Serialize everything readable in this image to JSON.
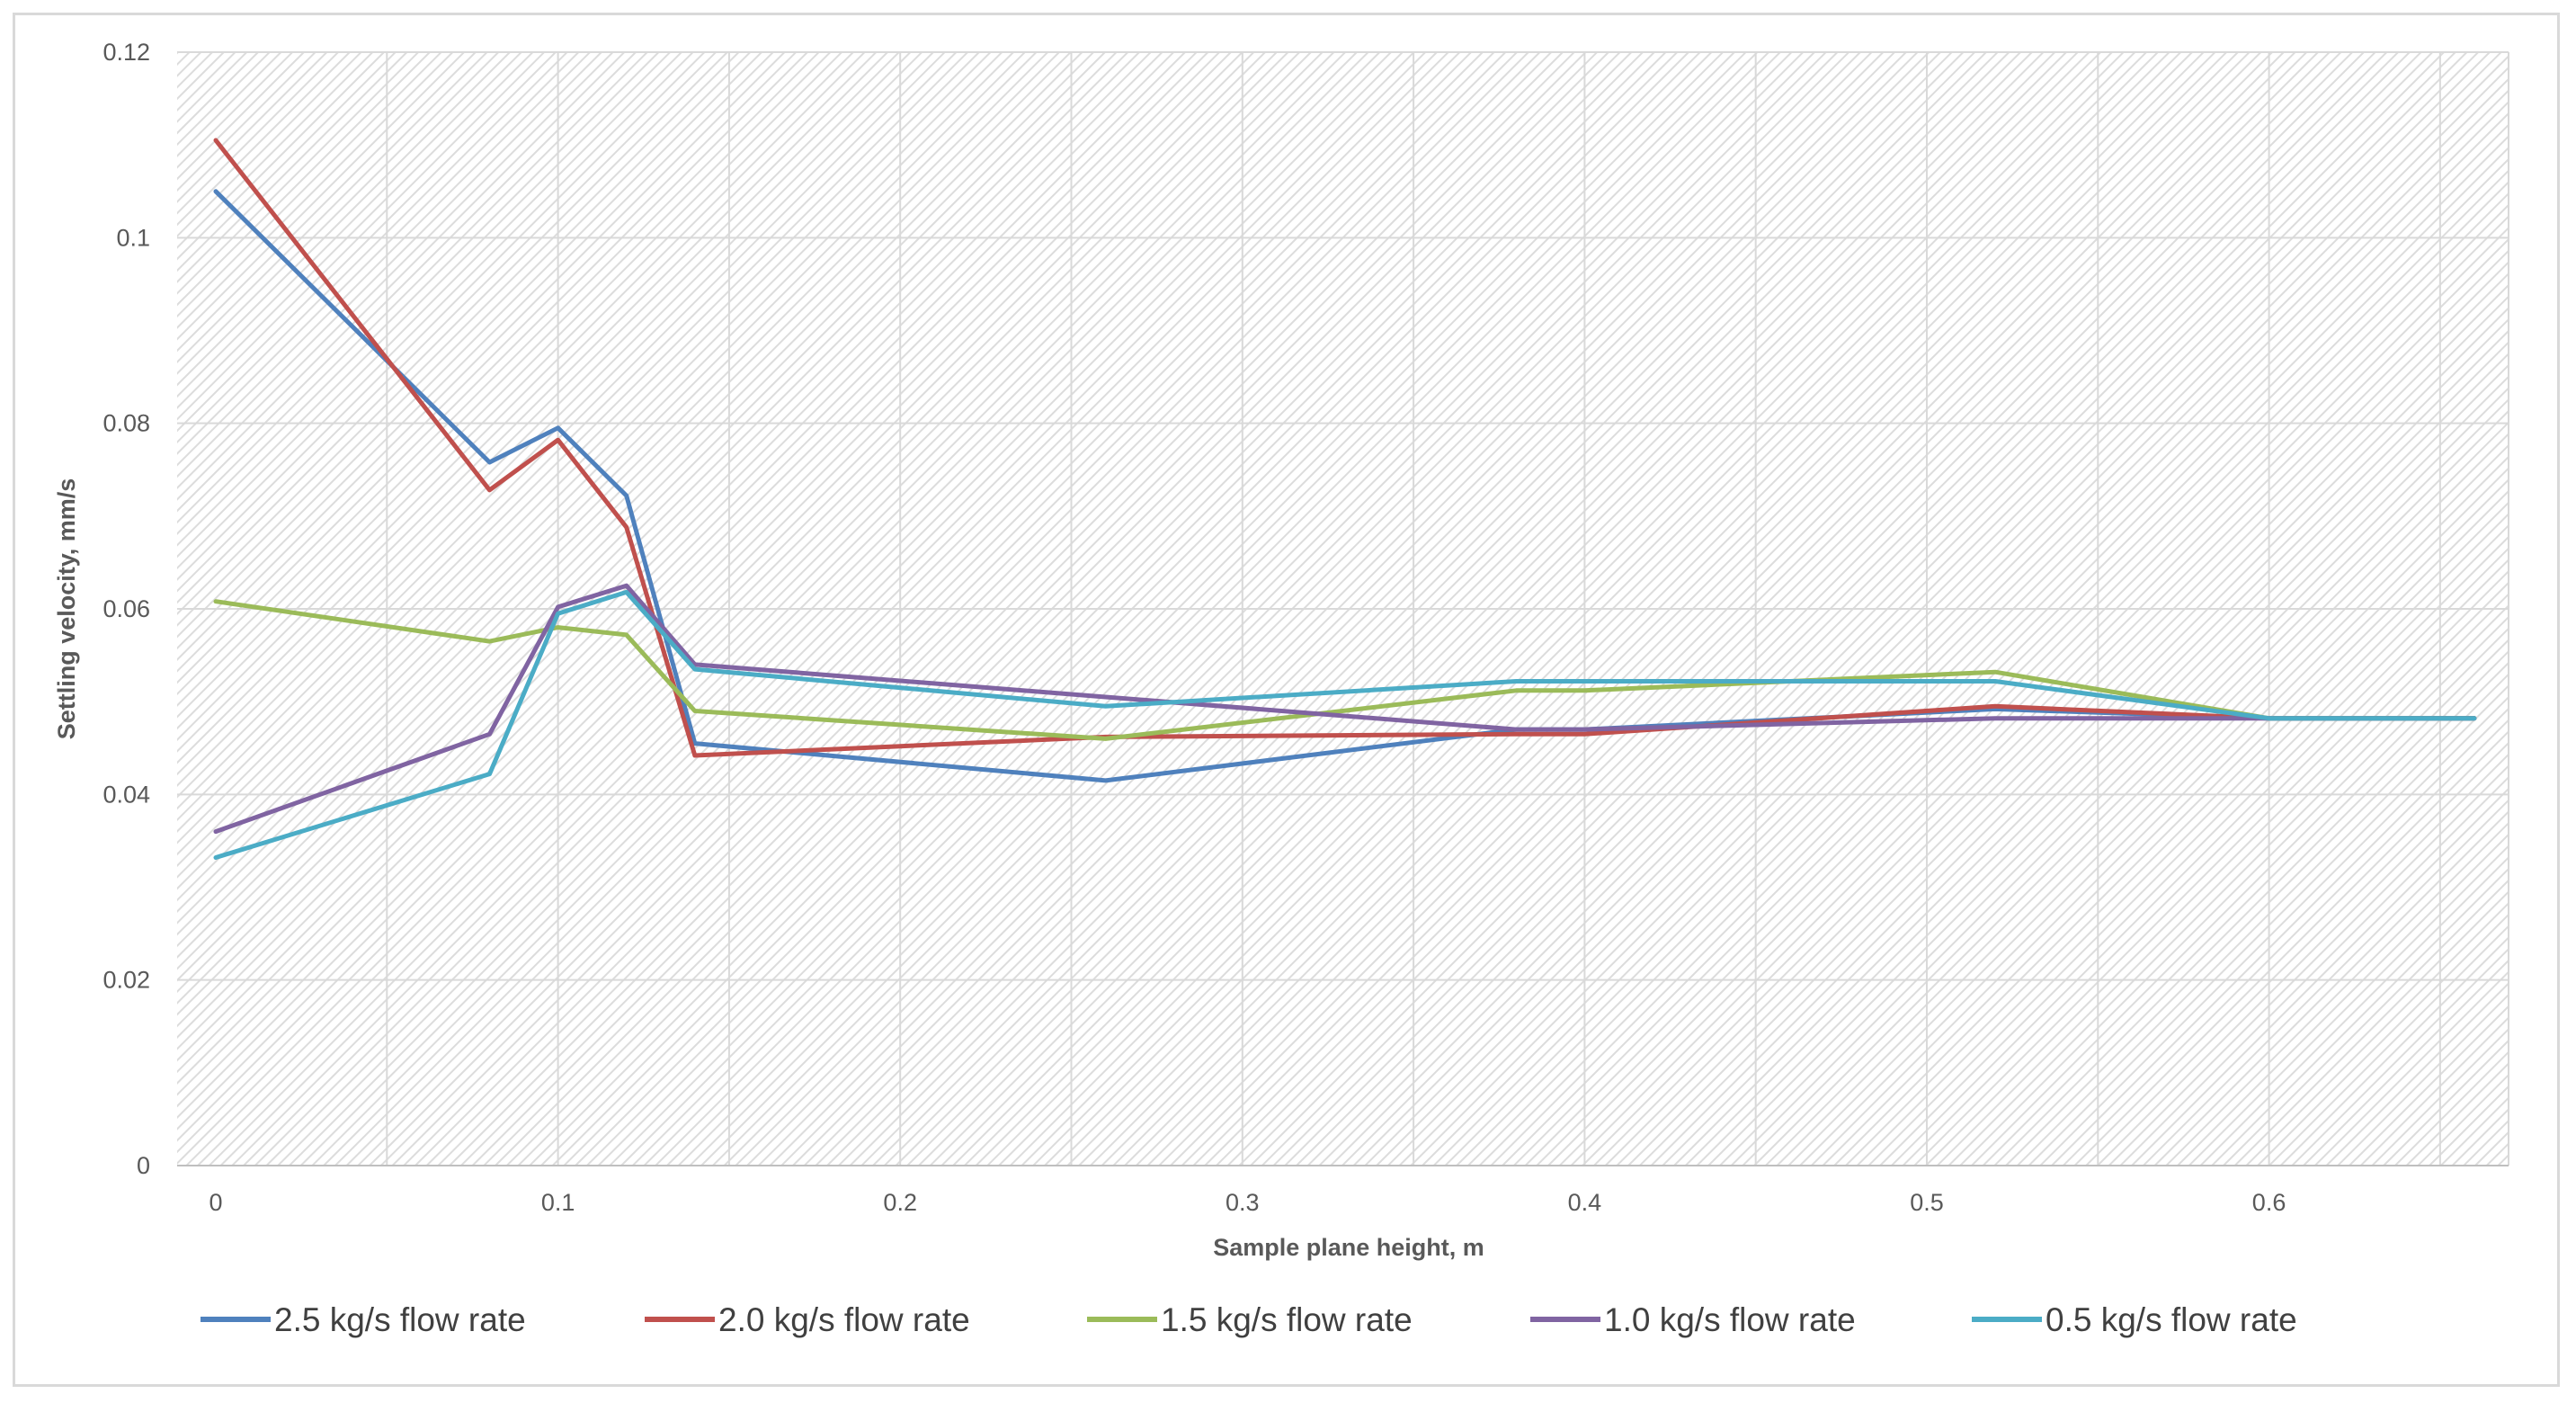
{
  "chart_data": {
    "type": "line",
    "title": "",
    "xlabel": "Sample plane height, m",
    "ylabel": "Settling velocity, mm/s",
    "xlim": [
      -0.0113,
      0.67
    ],
    "ylim": [
      0,
      0.12
    ],
    "xticks": [
      0,
      0.1,
      0.2,
      0.3,
      0.4,
      0.5,
      0.6
    ],
    "xtick_labels": [
      "0",
      "0.1",
      "0.2",
      "0.3",
      "0.4",
      "0.5",
      "0.6"
    ],
    "yticks": [
      0,
      0.02,
      0.04,
      0.06,
      0.08,
      0.1,
      0.12
    ],
    "ytick_labels": [
      "0",
      "0.02",
      "0.04",
      "0.06",
      "0.08",
      "0.1",
      "0.12"
    ],
    "grid": true,
    "legend_position": "bottom",
    "series": [
      {
        "name": "2.5 kg/s flow rate",
        "color": "#4f81bd",
        "x": [
          0,
          0.08,
          0.1,
          0.12,
          0.14,
          0.26,
          0.38,
          0.4,
          0.52,
          0.6,
          0.66
        ],
        "y": [
          0.105,
          0.0758,
          0.0795,
          0.0722,
          0.0455,
          0.0415,
          0.047,
          0.047,
          0.0492,
          0.0482,
          0.0482
        ]
      },
      {
        "name": "2.0 kg/s flow rate",
        "color": "#c0504d",
        "x": [
          0,
          0.08,
          0.1,
          0.12,
          0.14,
          0.2,
          0.26,
          0.38,
          0.4,
          0.52,
          0.6,
          0.66
        ],
        "y": [
          0.1105,
          0.0728,
          0.0782,
          0.0688,
          0.0442,
          0.0452,
          0.0462,
          0.0465,
          0.0465,
          0.0495,
          0.0482,
          0.0482
        ]
      },
      {
        "name": "1.5 kg/s flow rate",
        "color": "#9bbb59",
        "x": [
          0,
          0.08,
          0.1,
          0.12,
          0.14,
          0.26,
          0.38,
          0.4,
          0.52,
          0.6,
          0.66
        ],
        "y": [
          0.0608,
          0.0565,
          0.058,
          0.0572,
          0.049,
          0.046,
          0.0512,
          0.0512,
          0.0532,
          0.0482,
          0.0482
        ]
      },
      {
        "name": "1.0 kg/s flow rate",
        "color": "#8064a2",
        "x": [
          0,
          0.08,
          0.1,
          0.12,
          0.14,
          0.26,
          0.38,
          0.4,
          0.52,
          0.6,
          0.66
        ],
        "y": [
          0.036,
          0.0465,
          0.0602,
          0.0625,
          0.054,
          0.0505,
          0.047,
          0.047,
          0.0482,
          0.0482,
          0.0482
        ]
      },
      {
        "name": "0.5 kg/s flow rate",
        "color": "#4bacc6",
        "x": [
          0,
          0.08,
          0.1,
          0.12,
          0.14,
          0.26,
          0.38,
          0.4,
          0.52,
          0.6,
          0.66
        ],
        "y": [
          0.0332,
          0.0422,
          0.0595,
          0.0618,
          0.0535,
          0.0495,
          0.0522,
          0.0522,
          0.0522,
          0.0482,
          0.0482
        ]
      }
    ]
  }
}
